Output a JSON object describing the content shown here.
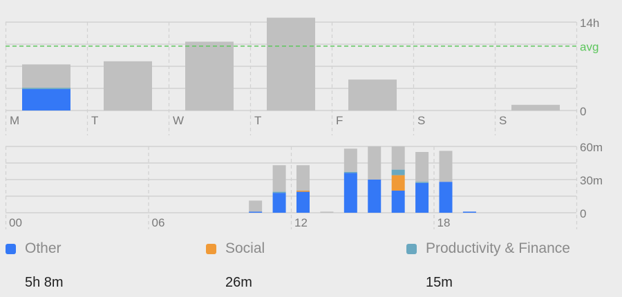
{
  "colors": {
    "other": "#3478f6",
    "social": "#f09a37",
    "productivity": "#6aa8c0",
    "rest": "#c0c0c0",
    "grid": "#d2d2d2",
    "avg": "#5cc65c",
    "label": "#7a7a7a"
  },
  "legend": [
    {
      "key": "other",
      "name": "Other",
      "total": "5h 8m"
    },
    {
      "key": "social",
      "name": "Social",
      "total": "26m"
    },
    {
      "key": "productivity",
      "name": "Productivity & Finance",
      "total": "15m"
    }
  ],
  "chart_data": [
    {
      "type": "bar",
      "stacked": true,
      "grid": true,
      "categories": [
        "M",
        "T",
        "W",
        "T",
        "F",
        "S",
        "S"
      ],
      "y_ticks": [
        "14h",
        "avg",
        "0"
      ],
      "ylim": [
        0,
        14
      ],
      "avg": 10.2,
      "series": [
        {
          "name": "Other",
          "color_key": "other",
          "values": [
            3.4,
            0,
            0,
            0,
            0,
            0,
            0
          ]
        },
        {
          "name": "Social",
          "color_key": "social",
          "values": [
            0,
            0,
            0,
            0,
            0,
            0,
            0
          ]
        },
        {
          "name": "Productivity & Finance",
          "color_key": "productivity",
          "values": [
            0.2,
            0,
            0,
            0,
            0,
            0,
            0
          ]
        },
        {
          "color_key": "rest",
          "values": [
            3.7,
            7.8,
            10.9,
            14.7,
            4.9,
            0,
            0.9
          ]
        }
      ]
    },
    {
      "type": "bar",
      "stacked": true,
      "grid": true,
      "x": [
        0,
        1,
        2,
        3,
        4,
        5,
        6,
        7,
        8,
        9,
        10,
        11,
        12,
        13,
        14,
        15,
        16,
        17,
        18,
        19,
        20,
        21,
        22,
        23
      ],
      "x_tick_labels": [
        {
          "hour": 0,
          "label": "00"
        },
        {
          "hour": 6,
          "label": "06"
        },
        {
          "hour": 12,
          "label": "12"
        },
        {
          "hour": 18,
          "label": "18"
        }
      ],
      "y_ticks": [
        "60m",
        "30m",
        "0"
      ],
      "ylim": [
        0,
        60
      ],
      "series": [
        {
          "name": "Other",
          "color_key": "other",
          "values": [
            0,
            0,
            0,
            0,
            0,
            0,
            0,
            0,
            0,
            0,
            1,
            18,
            19,
            0,
            36,
            30,
            20,
            27,
            28,
            1,
            0,
            0,
            0,
            0
          ]
        },
        {
          "name": "Social",
          "color_key": "social",
          "values": [
            0,
            0,
            0,
            0,
            0,
            0,
            0,
            0,
            0,
            0,
            0,
            0,
            1,
            0,
            0,
            0,
            14,
            0,
            0,
            0,
            0,
            0,
            0,
            0
          ]
        },
        {
          "name": "Productivity & Finance",
          "color_key": "productivity",
          "values": [
            0,
            0,
            0,
            0,
            0,
            0,
            0,
            0,
            0,
            0,
            0,
            1,
            0,
            0,
            1,
            0,
            5,
            1,
            0,
            0,
            0,
            0,
            0,
            0
          ]
        },
        {
          "color_key": "rest",
          "values": [
            0,
            0,
            0,
            0,
            0,
            0,
            0,
            0,
            0,
            0,
            10,
            24,
            23,
            1,
            21,
            30,
            21,
            27,
            28,
            0,
            0,
            0,
            0,
            0
          ]
        }
      ]
    }
  ]
}
